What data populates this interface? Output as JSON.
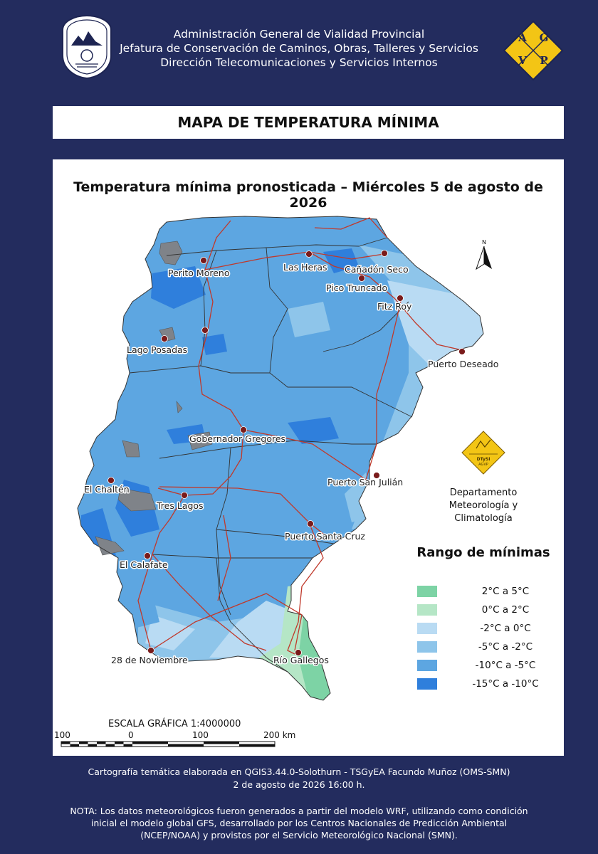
{
  "header": {
    "line1": "Administración General de Vialidad Provincial",
    "line2": "Jefatura de Conservación de Caminos, Obras, Talleres y Servicios",
    "line3": "Dirección Telecomunicaciones y Servicios Internos",
    "logo_letters": [
      "A",
      "G",
      "V",
      "P"
    ]
  },
  "title": "MAPA DE TEMPERATURA MÍNIMA",
  "map": {
    "subtitle": "Temperatura mínima pronosticada – Miércoles 5 de agosto de 2026",
    "north_label": "N",
    "cities": [
      "Perito Moreno",
      "Las Heras",
      "Cañadón Seco",
      "Pico Truncado",
      "Fitz Roy",
      "Lago Posadas",
      "Puerto Deseado",
      "Gobernador Gregores",
      "El Chaltén",
      "Puerto San Julián",
      "Tres Lagos",
      "Puerto Santa Cruz",
      "El Calafate",
      "28 de Noviembre",
      "Río Gallegos"
    ],
    "department_logo_text": [
      "DTySI",
      "AGVP"
    ],
    "department": [
      "Departamento",
      "Meteorología y Climatología"
    ]
  },
  "legend": {
    "title": "Rango de mínimas",
    "items": [
      {
        "label": "2°C a 5°C",
        "color": "#7dd3a5"
      },
      {
        "label": "0°C a 2°C",
        "color": "#b5e6c6"
      },
      {
        "label": "-2°C a 0°C",
        "color": "#b9dbf3"
      },
      {
        "label": "-5°C a -2°C",
        "color": "#8ec5ea"
      },
      {
        "label": "-10°C a -5°C",
        "color": "#5da6e1"
      },
      {
        "label": "-15°C a -10°C",
        "color": "#2f7fdc"
      }
    ]
  },
  "scale": {
    "title": "ESCALA GRÁFICA 1:4000000",
    "ticks": [
      "100",
      "0",
      "100",
      "200 km"
    ]
  },
  "footer": {
    "credit": "Cartografía temática elaborada en QGIS3.44.0-Solothurn - TSGyEA Facundo Muñoz (OMS-SMN)",
    "date": "2 de agosto de 2026 16:00 h.",
    "note1": "NOTA: Los datos meteorológicos fueron generados a partir del modelo WRF, utilizando como condición",
    "note2": "inicial el modelo global GFS, desarrollado por los Centros Nacionales de Predicción Ambiental",
    "note3": "(NCEP/NOAA) y provistos por el Servicio Meteorológico Nacional (SMN)."
  },
  "colors": {
    "background": "#232c5e",
    "panel": "#ffffff",
    "road": "#c0392b",
    "lake": "#7f8389"
  }
}
